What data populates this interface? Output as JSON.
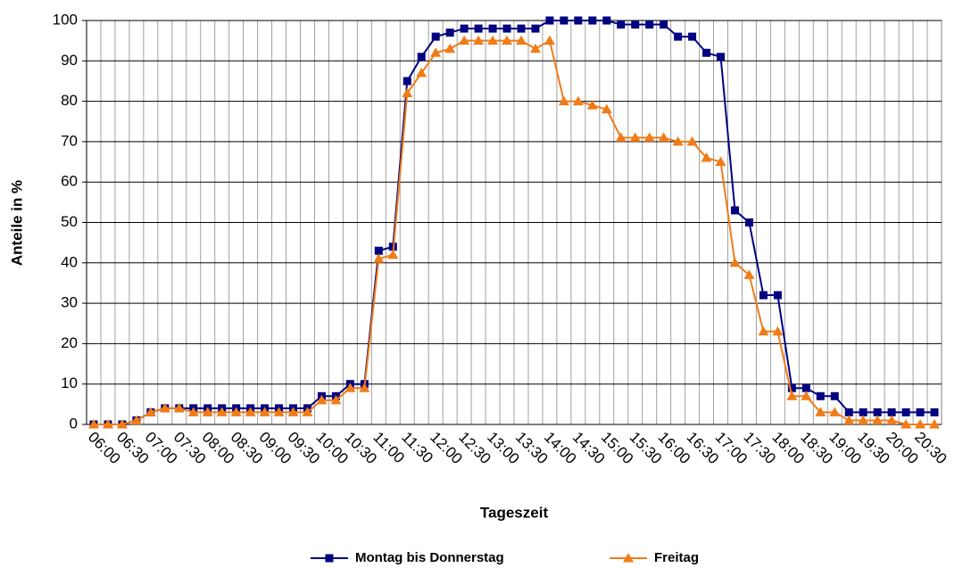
{
  "chart_data": {
    "type": "line",
    "x_label": "Tageszeit",
    "y_label": "Anteile in %",
    "categories": [
      "06:00",
      null,
      "06:30",
      null,
      "07:00",
      null,
      "07:30",
      null,
      "08:00",
      null,
      "08:30",
      null,
      "09:00",
      null,
      "09:30",
      null,
      "10:00",
      null,
      "10:30",
      null,
      "11:00",
      null,
      "11:30",
      null,
      "12:00",
      null,
      "12:30",
      null,
      "13:00",
      null,
      "13:30",
      null,
      "14:00",
      null,
      "14:30",
      null,
      "15:00",
      null,
      "15:30",
      null,
      "16:00",
      null,
      "16:30",
      null,
      "17:00",
      null,
      "17:30",
      null,
      "18:00",
      null,
      "18:30",
      null,
      "19:00",
      null,
      "19:30",
      null,
      "20:00",
      null,
      "20:30",
      null
    ],
    "series": [
      {
        "name": "Montag bis Donnerstag",
        "color": "#000080",
        "marker": "square",
        "values": [
          0,
          0,
          0,
          1,
          3,
          4,
          4,
          4,
          4,
          4,
          4,
          4,
          4,
          4,
          4,
          4,
          7,
          7,
          10,
          10,
          43,
          44,
          85,
          91,
          96,
          97,
          98,
          98,
          98,
          98,
          98,
          98,
          100,
          100,
          100,
          100,
          100,
          99,
          99,
          99,
          99,
          96,
          96,
          92,
          91,
          53,
          50,
          32,
          32,
          9,
          9,
          7,
          7,
          3,
          3,
          3,
          3,
          3,
          3,
          3
        ]
      },
      {
        "name": "Freitag",
        "color": "#f07c18",
        "marker": "triangle",
        "values": [
          0,
          0,
          0,
          1,
          3,
          4,
          4,
          3,
          3,
          3,
          3,
          3,
          3,
          3,
          3,
          3,
          6,
          6,
          9,
          9,
          41,
          42,
          82,
          87,
          92,
          93,
          95,
          95,
          95,
          95,
          95,
          93,
          95,
          80,
          80,
          79,
          78,
          71,
          71,
          71,
          71,
          70,
          70,
          66,
          65,
          40,
          37,
          23,
          23,
          7,
          7,
          3,
          3,
          1,
          1,
          1,
          1,
          0,
          0,
          0
        ]
      }
    ],
    "ylim": [
      0,
      100
    ],
    "yticks": [
      0,
      10,
      20,
      30,
      40,
      50,
      60,
      70,
      80,
      90,
      100
    ],
    "grid": true,
    "legend": "bottom"
  }
}
